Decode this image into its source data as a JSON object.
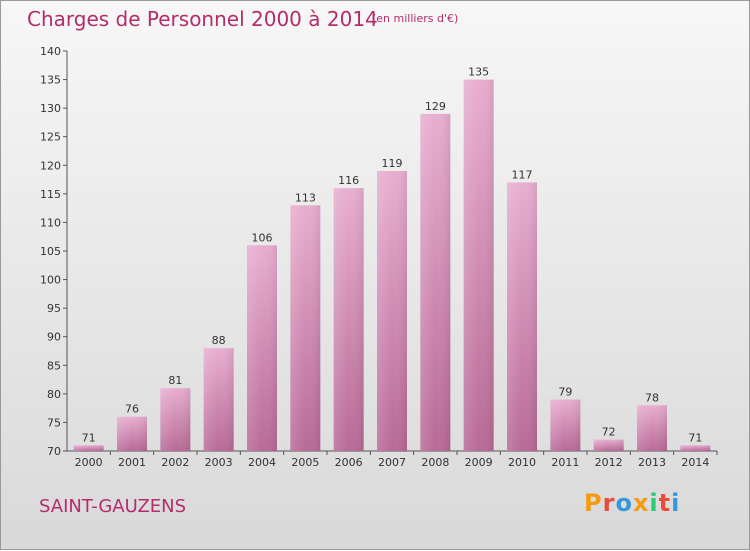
{
  "header": {
    "title": "Charges de Personnel 2000 à 2014",
    "subtitle": "(en milliers d'€)"
  },
  "footer": {
    "commune": "SAINT-GAUZENS",
    "logo_text": "Proxiti"
  },
  "colors": {
    "accent": "#b32d6a",
    "bar_light": "#e8aed0",
    "bar_dark": "#b86a96",
    "logo": [
      "#f39c12",
      "#e74c3c",
      "#3498db",
      "#f39c12",
      "#2ecc71",
      "#e74c3c",
      "#3498db"
    ]
  },
  "chart_data": {
    "type": "bar",
    "title": "Charges de Personnel 2000 à 2014",
    "subtitle": "(en milliers d'€)",
    "categories": [
      "2000",
      "2001",
      "2002",
      "2003",
      "2004",
      "2005",
      "2006",
      "2007",
      "2008",
      "2009",
      "2010",
      "2011",
      "2012",
      "2013",
      "2014"
    ],
    "values": [
      71,
      76,
      81,
      88,
      106,
      113,
      116,
      119,
      129,
      135,
      117,
      79,
      72,
      78,
      71
    ],
    "ylim": [
      70,
      140
    ],
    "yticks": [
      70,
      75,
      80,
      85,
      90,
      95,
      100,
      105,
      110,
      115,
      120,
      125,
      130,
      135,
      140
    ],
    "grid": false,
    "xlabel": "",
    "ylabel": ""
  }
}
